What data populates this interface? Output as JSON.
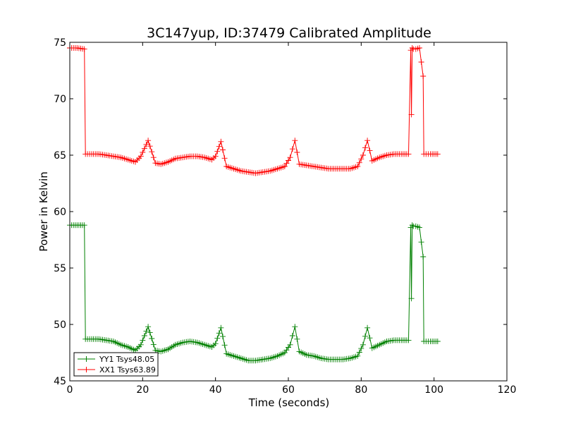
{
  "chart_data": {
    "type": "line",
    "title": "3C147yup, ID:37479 Calibrated Amplitude",
    "xlabel": "Time (seconds)",
    "ylabel": "Power in Kelvin",
    "xlim": [
      0,
      120
    ],
    "ylim": [
      45,
      75
    ],
    "xticks": [
      0,
      20,
      40,
      60,
      80,
      100,
      120
    ],
    "yticks": [
      45,
      50,
      55,
      60,
      65,
      70,
      75
    ],
    "grid": false,
    "legend_position": "lower-left",
    "marker": "plus",
    "series": [
      {
        "name": "YY1 Tsys48.05",
        "color": "#008000",
        "x": [
          0,
          2,
          4,
          4.3,
          6,
          8,
          10,
          12,
          14,
          16,
          18,
          19.5,
          21.5,
          23.5,
          25,
          27,
          29,
          31,
          33,
          35,
          37,
          39,
          40,
          41.5,
          43,
          45,
          47,
          49,
          51,
          53,
          55,
          57,
          59,
          60.5,
          61.8,
          63,
          65,
          67,
          69,
          71,
          73,
          75,
          77,
          79,
          80.5,
          81.7,
          83,
          85,
          87,
          89,
          91,
          93,
          93.6,
          93.8,
          94,
          94.3,
          95,
          96,
          97,
          97.2,
          99,
          101
        ],
        "values": [
          58.8,
          58.8,
          58.8,
          48.7,
          48.7,
          48.7,
          48.6,
          48.5,
          48.2,
          48.0,
          47.7,
          48.2,
          49.8,
          47.7,
          47.6,
          47.8,
          48.2,
          48.4,
          48.5,
          48.4,
          48.2,
          48.0,
          48.3,
          49.7,
          47.4,
          47.2,
          47.0,
          46.8,
          46.8,
          46.9,
          47.0,
          47.2,
          47.5,
          48.2,
          49.8,
          47.6,
          47.3,
          47.2,
          47.0,
          46.9,
          46.9,
          46.9,
          47.0,
          47.2,
          48.2,
          49.7,
          47.9,
          48.2,
          48.5,
          48.6,
          48.6,
          48.6,
          58.6,
          52.3,
          58.8,
          58.7,
          58.7,
          58.6,
          56.0,
          48.5,
          48.5,
          48.5
        ]
      },
      {
        "name": "XX1 Tsys63.89",
        "color": "#ff0000",
        "x": [
          0,
          2,
          4,
          4.3,
          6,
          8,
          10,
          12,
          14,
          16,
          18,
          19.5,
          21.5,
          23.5,
          25,
          27,
          29,
          31,
          33,
          35,
          37,
          39,
          40,
          41.5,
          43,
          45,
          47,
          49,
          51,
          53,
          55,
          57,
          59,
          60.5,
          61.8,
          63,
          65,
          67,
          69,
          71,
          73,
          75,
          77,
          79,
          80.5,
          81.7,
          83,
          85,
          87,
          89,
          91,
          93,
          93.6,
          93.8,
          94,
          94.3,
          95,
          96,
          97,
          97.2,
          99,
          101
        ],
        "values": [
          74.5,
          74.5,
          74.4,
          65.1,
          65.1,
          65.1,
          65.0,
          64.9,
          64.8,
          64.6,
          64.4,
          64.9,
          66.3,
          64.3,
          64.2,
          64.4,
          64.7,
          64.8,
          64.9,
          64.9,
          64.8,
          64.6,
          64.9,
          66.2,
          64.0,
          63.8,
          63.6,
          63.5,
          63.4,
          63.5,
          63.6,
          63.8,
          64.0,
          64.8,
          66.3,
          64.2,
          64.1,
          64.0,
          63.9,
          63.8,
          63.8,
          63.8,
          63.8,
          64.0,
          65.0,
          66.3,
          64.5,
          64.8,
          65.0,
          65.1,
          65.1,
          65.1,
          74.3,
          68.6,
          74.5,
          74.4,
          74.4,
          74.5,
          72.0,
          65.1,
          65.1,
          65.1
        ]
      }
    ]
  }
}
